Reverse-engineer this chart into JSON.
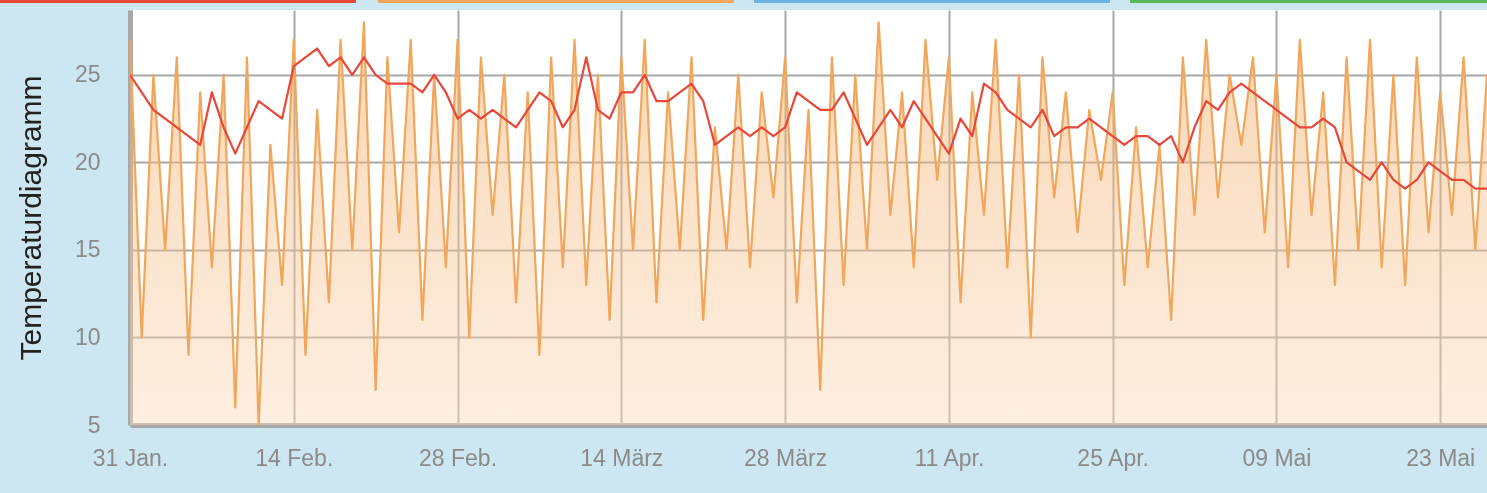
{
  "chart_data": {
    "type": "line",
    "ylabel": "Temperaturdiagramm",
    "x": [
      "--01-31",
      "--02-01",
      "--02-02",
      "--02-03",
      "--02-04",
      "--02-05",
      "--02-06",
      "--02-07",
      "--02-08",
      "--02-09",
      "--02-10",
      "--02-11",
      "--02-12",
      "--02-13",
      "--02-14",
      "--02-15",
      "--02-16",
      "--02-17",
      "--02-18",
      "--02-19",
      "--02-20",
      "--02-21",
      "--02-22",
      "--02-23",
      "--02-24",
      "--02-25",
      "--02-26",
      "--02-27",
      "--02-28",
      "--03-01",
      "--03-02",
      "--03-03",
      "--03-04",
      "--03-05",
      "--03-06",
      "--03-07",
      "--03-08",
      "--03-09",
      "--03-10",
      "--03-11",
      "--03-12",
      "--03-13",
      "--03-14",
      "--03-15",
      "--03-16",
      "--03-17",
      "--03-18",
      "--03-19",
      "--03-20",
      "--03-21",
      "--03-22",
      "--03-23",
      "--03-24",
      "--03-25",
      "--03-26",
      "--03-27",
      "--03-28",
      "--03-29",
      "--03-30",
      "--03-31",
      "--04-01",
      "--04-02",
      "--04-03",
      "--04-04",
      "--04-05",
      "--04-06",
      "--04-07",
      "--04-08",
      "--04-09",
      "--04-10",
      "--04-11",
      "--04-12",
      "--04-13",
      "--04-14",
      "--04-15",
      "--04-16",
      "--04-17",
      "--04-18",
      "--04-19",
      "--04-20",
      "--04-21",
      "--04-22",
      "--04-23",
      "--04-24",
      "--04-25",
      "--04-26",
      "--04-27",
      "--04-28",
      "--04-29",
      "--04-30",
      "--05-01",
      "--05-02",
      "--05-03",
      "--05-04",
      "--05-05",
      "--05-06",
      "--05-07",
      "--05-08",
      "--05-09",
      "--05-10",
      "--05-11",
      "--05-12",
      "--05-13",
      "--05-14",
      "--05-15",
      "--05-16",
      "--05-17",
      "--05-18",
      "--05-19",
      "--05-20",
      "--05-21",
      "--05-22",
      "--05-23",
      "--05-24",
      "--05-25",
      "--05-26",
      "--05-27"
    ],
    "series": [
      {
        "type": "area",
        "color": "#f2a65a",
        "values": [
          27,
          10,
          25,
          15,
          26,
          9,
          24,
          14,
          25,
          6,
          26,
          5,
          21,
          13,
          27,
          9,
          23,
          12,
          27,
          15,
          28,
          7,
          26,
          16,
          27,
          11,
          25,
          14,
          27,
          10,
          26,
          17,
          25,
          12,
          24,
          9,
          26,
          14,
          27,
          13,
          25,
          11,
          26,
          15,
          27,
          12,
          24,
          15,
          26,
          11,
          22,
          15,
          25,
          14,
          24,
          18,
          26,
          12,
          23,
          7,
          26,
          13,
          25,
          15,
          28,
          17,
          24,
          14,
          27,
          19,
          26,
          12,
          24,
          17,
          27,
          14,
          25,
          10,
          26,
          18,
          24,
          16,
          23,
          19,
          24,
          13,
          22,
          14,
          21,
          11,
          26,
          17,
          27,
          18,
          25,
          21,
          26,
          16,
          25,
          14,
          27,
          17,
          24,
          13,
          26,
          15,
          27,
          14,
          25,
          13,
          26,
          16,
          24,
          17,
          26,
          15,
          25
        ]
      },
      {
        "color": "#e8473a",
        "values": [
          25,
          24,
          23,
          22.5,
          22,
          21.5,
          21,
          24,
          22,
          20.5,
          22,
          23.5,
          23,
          22.5,
          25.5,
          26,
          26.5,
          25.5,
          26,
          25,
          26,
          25,
          24.5,
          24.5,
          24.5,
          24,
          25,
          24,
          22.5,
          23,
          22.5,
          23,
          22.5,
          22,
          23,
          24,
          23.5,
          22,
          23,
          26,
          23,
          22.5,
          24,
          24,
          25,
          23.5,
          23.5,
          24,
          24.5,
          23.5,
          21,
          21.5,
          22,
          21.5,
          22,
          21.5,
          22,
          24,
          23.5,
          23,
          23,
          24,
          22.5,
          21,
          22,
          23,
          22,
          23.5,
          22.5,
          21.5,
          20.5,
          22.5,
          21.5,
          24.5,
          24,
          23,
          22.5,
          22,
          23,
          21.5,
          22,
          22,
          22.5,
          22,
          21.5,
          21,
          21.5,
          21.5,
          21,
          21.5,
          20,
          22,
          23.5,
          23,
          24,
          24.5,
          24,
          23.5,
          23,
          22.5,
          22,
          22,
          22.5,
          22,
          20,
          19.5,
          19,
          20,
          19,
          18.5,
          19,
          20,
          19.5,
          19,
          19,
          18.5,
          18.5
        ]
      }
    ],
    "xlim": [
      "--01-31",
      "--05-27"
    ],
    "xticks": [
      {
        "value": "--01-31",
        "label": "31 Jan."
      },
      {
        "value": "--02-14",
        "label": "14 Feb."
      },
      {
        "value": "--02-28",
        "label": "28 Feb."
      },
      {
        "value": "--03-14",
        "label": "14 März"
      },
      {
        "value": "--03-28",
        "label": "28 März"
      },
      {
        "value": "--04-11",
        "label": "11 Apr."
      },
      {
        "value": "--04-25",
        "label": "25 Apr."
      },
      {
        "value": "--05-09",
        "label": "09 Mai"
      },
      {
        "value": "--05-23",
        "label": "23 Mai"
      }
    ],
    "ylim": [
      5,
      28.7
    ],
    "yticks": [
      5,
      10,
      15,
      20,
      25
    ],
    "grid": true,
    "line_style": "solid",
    "marker": "none"
  }
}
